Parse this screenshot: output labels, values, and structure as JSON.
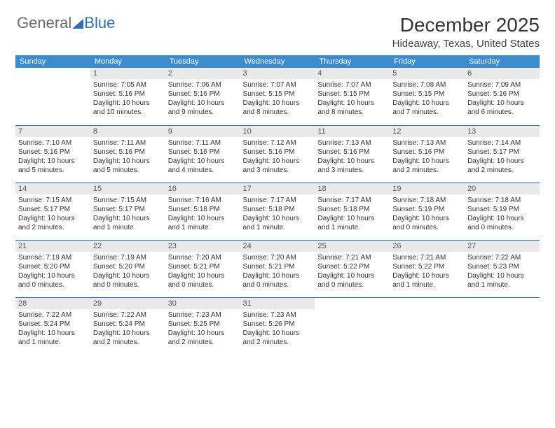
{
  "logo": {
    "part1": "General",
    "part2": "Blue"
  },
  "title": "December 2025",
  "location": "Hideaway, Texas, United States",
  "colors": {
    "header_bg": "#3b8bce",
    "header_text": "#ffffff",
    "daynum_bg": "#e9e9e9",
    "border": "#2f6fb0",
    "body_text": "#333333"
  },
  "weekdays": [
    "Sunday",
    "Monday",
    "Tuesday",
    "Wednesday",
    "Thursday",
    "Friday",
    "Saturday"
  ],
  "weeks": [
    [
      {
        "empty": true
      },
      {
        "day": "1",
        "sunrise": "7:05 AM",
        "sunset": "5:16 PM",
        "daylight": "10 hours and 10 minutes."
      },
      {
        "day": "2",
        "sunrise": "7:06 AM",
        "sunset": "5:16 PM",
        "daylight": "10 hours and 9 minutes."
      },
      {
        "day": "3",
        "sunrise": "7:07 AM",
        "sunset": "5:15 PM",
        "daylight": "10 hours and 8 minutes."
      },
      {
        "day": "4",
        "sunrise": "7:07 AM",
        "sunset": "5:15 PM",
        "daylight": "10 hours and 8 minutes."
      },
      {
        "day": "5",
        "sunrise": "7:08 AM",
        "sunset": "5:15 PM",
        "daylight": "10 hours and 7 minutes."
      },
      {
        "day": "6",
        "sunrise": "7:09 AM",
        "sunset": "5:16 PM",
        "daylight": "10 hours and 6 minutes."
      }
    ],
    [
      {
        "day": "7",
        "sunrise": "7:10 AM",
        "sunset": "5:16 PM",
        "daylight": "10 hours and 5 minutes."
      },
      {
        "day": "8",
        "sunrise": "7:11 AM",
        "sunset": "5:16 PM",
        "daylight": "10 hours and 5 minutes."
      },
      {
        "day": "9",
        "sunrise": "7:11 AM",
        "sunset": "5:16 PM",
        "daylight": "10 hours and 4 minutes."
      },
      {
        "day": "10",
        "sunrise": "7:12 AM",
        "sunset": "5:16 PM",
        "daylight": "10 hours and 3 minutes."
      },
      {
        "day": "11",
        "sunrise": "7:13 AM",
        "sunset": "5:16 PM",
        "daylight": "10 hours and 3 minutes."
      },
      {
        "day": "12",
        "sunrise": "7:13 AM",
        "sunset": "5:16 PM",
        "daylight": "10 hours and 2 minutes."
      },
      {
        "day": "13",
        "sunrise": "7:14 AM",
        "sunset": "5:17 PM",
        "daylight": "10 hours and 2 minutes."
      }
    ],
    [
      {
        "day": "14",
        "sunrise": "7:15 AM",
        "sunset": "5:17 PM",
        "daylight": "10 hours and 2 minutes."
      },
      {
        "day": "15",
        "sunrise": "7:15 AM",
        "sunset": "5:17 PM",
        "daylight": "10 hours and 1 minute."
      },
      {
        "day": "16",
        "sunrise": "7:16 AM",
        "sunset": "5:18 PM",
        "daylight": "10 hours and 1 minute."
      },
      {
        "day": "17",
        "sunrise": "7:17 AM",
        "sunset": "5:18 PM",
        "daylight": "10 hours and 1 minute."
      },
      {
        "day": "18",
        "sunrise": "7:17 AM",
        "sunset": "5:18 PM",
        "daylight": "10 hours and 1 minute."
      },
      {
        "day": "19",
        "sunrise": "7:18 AM",
        "sunset": "5:19 PM",
        "daylight": "10 hours and 0 minutes."
      },
      {
        "day": "20",
        "sunrise": "7:18 AM",
        "sunset": "5:19 PM",
        "daylight": "10 hours and 0 minutes."
      }
    ],
    [
      {
        "day": "21",
        "sunrise": "7:19 AM",
        "sunset": "5:20 PM",
        "daylight": "10 hours and 0 minutes."
      },
      {
        "day": "22",
        "sunrise": "7:19 AM",
        "sunset": "5:20 PM",
        "daylight": "10 hours and 0 minutes."
      },
      {
        "day": "23",
        "sunrise": "7:20 AM",
        "sunset": "5:21 PM",
        "daylight": "10 hours and 0 minutes."
      },
      {
        "day": "24",
        "sunrise": "7:20 AM",
        "sunset": "5:21 PM",
        "daylight": "10 hours and 0 minutes."
      },
      {
        "day": "25",
        "sunrise": "7:21 AM",
        "sunset": "5:22 PM",
        "daylight": "10 hours and 0 minutes."
      },
      {
        "day": "26",
        "sunrise": "7:21 AM",
        "sunset": "5:22 PM",
        "daylight": "10 hours and 1 minute."
      },
      {
        "day": "27",
        "sunrise": "7:22 AM",
        "sunset": "5:23 PM",
        "daylight": "10 hours and 1 minute."
      }
    ],
    [
      {
        "day": "28",
        "sunrise": "7:22 AM",
        "sunset": "5:24 PM",
        "daylight": "10 hours and 1 minute."
      },
      {
        "day": "29",
        "sunrise": "7:22 AM",
        "sunset": "5:24 PM",
        "daylight": "10 hours and 2 minutes."
      },
      {
        "day": "30",
        "sunrise": "7:23 AM",
        "sunset": "5:25 PM",
        "daylight": "10 hours and 2 minutes."
      },
      {
        "day": "31",
        "sunrise": "7:23 AM",
        "sunset": "5:26 PM",
        "daylight": "10 hours and 2 minutes."
      },
      {
        "empty": true
      },
      {
        "empty": true
      },
      {
        "empty": true
      }
    ]
  ],
  "labels": {
    "sunrise": "Sunrise:",
    "sunset": "Sunset:",
    "daylight": "Daylight:"
  }
}
